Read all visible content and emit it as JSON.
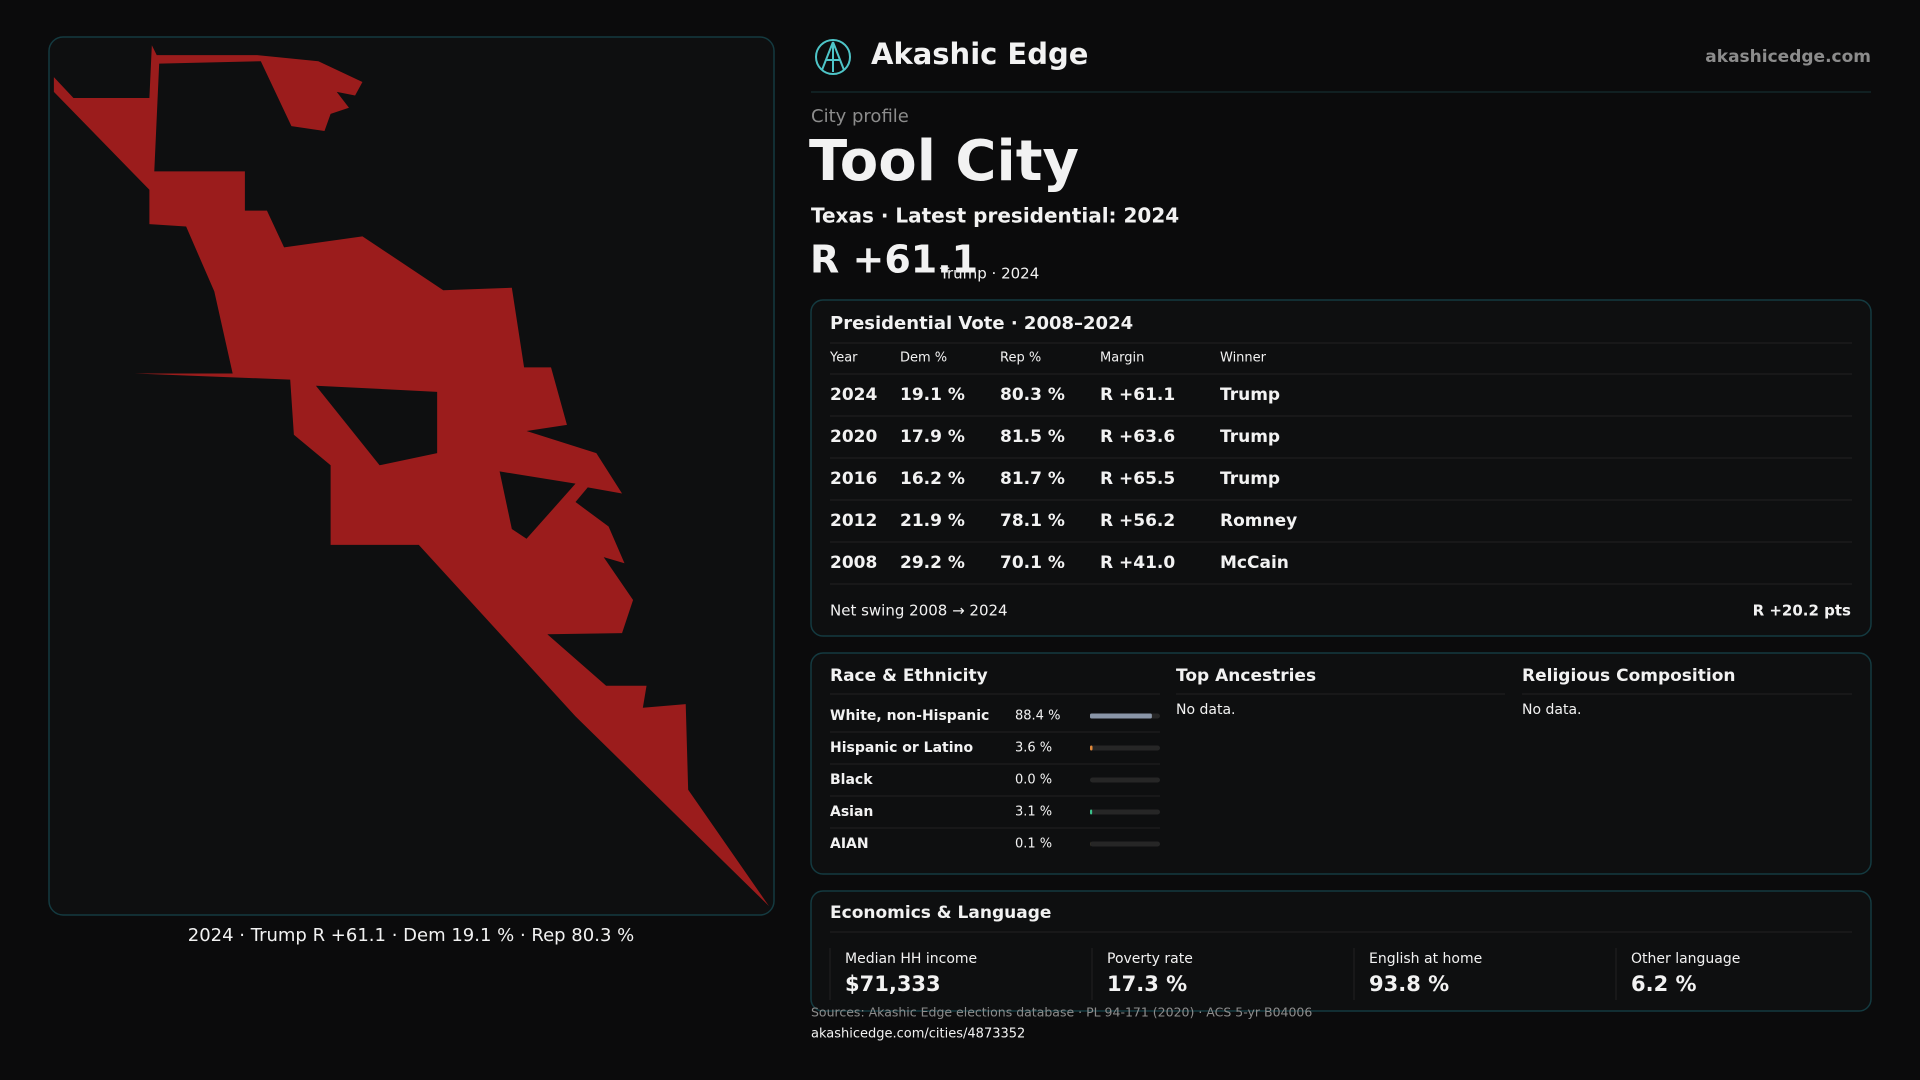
{
  "header": {
    "brand": "Akashic Edge",
    "site": "akashicedge.com"
  },
  "profile": {
    "label": "City profile",
    "name": "Tool City",
    "subtitle": "Texas · Latest presidential: 2024",
    "margin": "R +61.1",
    "margin_note": "Trump · 2024"
  },
  "map": {
    "caption": "2024 · Trump R +61.1 · Dem 19.1 % · Rep 80.3 %"
  },
  "votes": {
    "title": "Presidential Vote · 2008–2024",
    "columns": [
      "Year",
      "Dem %",
      "Rep %",
      "Margin",
      "Winner"
    ],
    "rows": [
      [
        "2024",
        "19.1 %",
        "80.3 %",
        "R +61.1",
        "Trump"
      ],
      [
        "2020",
        "17.9 %",
        "81.5 %",
        "R +63.6",
        "Trump"
      ],
      [
        "2016",
        "16.2 %",
        "81.7 %",
        "R +65.5",
        "Trump"
      ],
      [
        "2012",
        "21.9 %",
        "78.1 %",
        "R +56.2",
        "Romney"
      ],
      [
        "2008",
        "29.2 %",
        "70.1 %",
        "R +41.0",
        "McCain"
      ]
    ],
    "swing_label": "Net swing 2008 → 2024",
    "swing_value": "R +20.2 pts"
  },
  "race": {
    "title": "Race & Ethnicity",
    "rows": [
      {
        "name": "White, non-Hispanic",
        "value": 88.4,
        "value_label": "88.4 %",
        "color": "#8a96a8"
      },
      {
        "name": "Hispanic or Latino",
        "value": 3.6,
        "value_label": "3.6 %",
        "color": "#e0883a"
      },
      {
        "name": "Black",
        "value": 0.0,
        "value_label": "0.0 %",
        "color": "#8a6ad0"
      },
      {
        "name": "Asian",
        "value": 3.1,
        "value_label": "3.1 %",
        "color": "#3ac08a"
      },
      {
        "name": "AIAN",
        "value": 0.1,
        "value_label": "0.1 %",
        "color": "#c0a040"
      }
    ]
  },
  "ancestries": {
    "title": "Top Ancestries",
    "note": "No data."
  },
  "religion": {
    "title": "Religious Composition",
    "note": "No data."
  },
  "economics": {
    "title": "Economics & Language",
    "items": [
      {
        "label": "Median HH income",
        "value": "$71,333"
      },
      {
        "label": "Poverty rate",
        "value": "17.3 %"
      },
      {
        "label": "English at home",
        "value": "93.8 %"
      },
      {
        "label": "Other language",
        "value": "6.2 %"
      }
    ]
  },
  "footer": {
    "sources": "Sources: Akashic Edge elections database · PL 94-171 (2020) · ACS 5-yr B04006",
    "url": "akashicedge.com/cities/4873352"
  }
}
